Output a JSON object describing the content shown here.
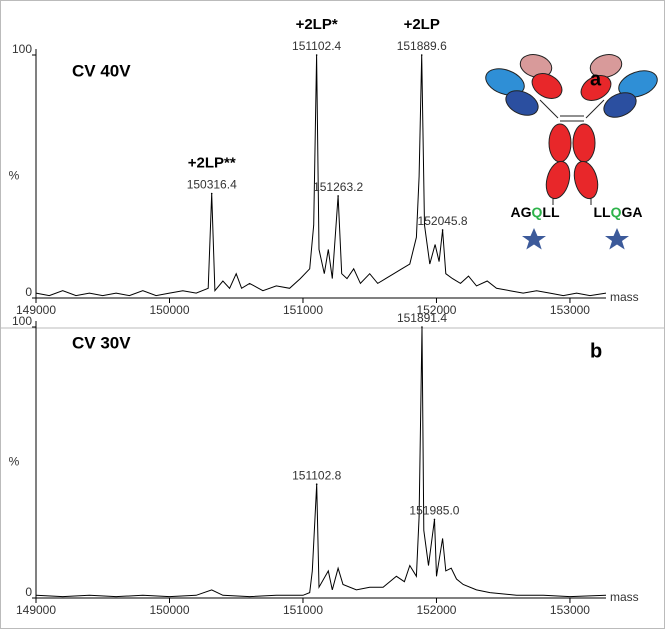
{
  "charts": [
    {
      "type": "spectrum",
      "panel_label": "a",
      "condition": "CV 40V",
      "x_label": "mass",
      "y_label": "%",
      "xlim": [
        149000,
        153270
      ],
      "ylim": [
        0,
        100
      ],
      "xticks": [
        149000,
        150000,
        151000,
        152000,
        153000
      ],
      "yticks": [
        0,
        100
      ],
      "color": "#000000",
      "x": [
        149000,
        149100,
        149200,
        149300,
        149400,
        149500,
        149600,
        149700,
        149800,
        149900,
        150000,
        150100,
        150200,
        150290,
        150316.4,
        150340,
        150400,
        150450,
        150500,
        150540,
        150600,
        150700,
        150800,
        150900,
        150980,
        151050,
        151080,
        151102.4,
        151120,
        151160,
        151190,
        151220,
        151263.2,
        151290,
        151330,
        151380,
        151430,
        151500,
        151560,
        151620,
        151680,
        151740,
        151800,
        151850,
        151870,
        151889.6,
        151910,
        151950,
        151990,
        152020,
        152045.8,
        152070,
        152120,
        152180,
        152240,
        152300,
        152380,
        152450,
        152550,
        152650,
        152750,
        152850,
        152950,
        153050,
        153150,
        153270
      ],
      "values": [
        2,
        1,
        3,
        1,
        2,
        1,
        2,
        1,
        3,
        1,
        2,
        3,
        2,
        4,
        43,
        3,
        7,
        4,
        10,
        4,
        6,
        3,
        5,
        4,
        8,
        12,
        30,
        100,
        20,
        10,
        20,
        8,
        42,
        10,
        8,
        12,
        6,
        10,
        6,
        8,
        10,
        12,
        14,
        25,
        50,
        100,
        30,
        14,
        22,
        15,
        28,
        10,
        8,
        6,
        9,
        5,
        7,
        4,
        3,
        2,
        3,
        2,
        1,
        2,
        1,
        2
      ],
      "peaks": {
        "x": [
          150316.4,
          151102.4,
          151263.2,
          151889.6,
          152045.8
        ],
        "y": [
          43,
          100,
          42,
          100,
          28
        ],
        "labels": [
          "150316.4",
          "151102.4",
          "151263.2",
          "151889.6",
          "152045.8"
        ],
        "names": [
          "+2LP**",
          "+2LP*",
          null,
          "+2LP",
          null
        ]
      },
      "tags": [
        [
          "AG",
          "Q",
          "LL"
        ],
        [
          "LL",
          "Q",
          "GA"
        ]
      ]
    },
    {
      "type": "spectrum",
      "panel_label": "b",
      "condition": "CV 30V",
      "x_label": "mass",
      "y_label": "%",
      "xlim": [
        149000,
        153270
      ],
      "ylim": [
        0,
        100
      ],
      "xticks": [
        149000,
        150000,
        151000,
        152000,
        153000
      ],
      "yticks": [
        0,
        100
      ],
      "color": "#000000",
      "x": [
        149000,
        149200,
        149400,
        149600,
        149800,
        150000,
        150200,
        150316,
        150400,
        150600,
        150800,
        151000,
        151050,
        151070,
        151102.8,
        151120,
        151190,
        151220,
        151263,
        151300,
        151400,
        151500,
        151600,
        151700,
        151760,
        151800,
        151850,
        151870,
        151891.4,
        151905,
        151940,
        151985,
        152000,
        152046,
        152070,
        152110,
        152150,
        152200,
        152300,
        152400,
        152600,
        152800,
        153000,
        153270
      ],
      "values": [
        1,
        0.5,
        1,
        0.5,
        1,
        0.5,
        1,
        3,
        1,
        0.5,
        1,
        1,
        2,
        10,
        42,
        4,
        10,
        3,
        11,
        5,
        3,
        4,
        4,
        8,
        6,
        12,
        8,
        30,
        100,
        25,
        12,
        29,
        8,
        22,
        10,
        11,
        7,
        5,
        3,
        2,
        1,
        1,
        0.5,
        1
      ],
      "peaks": {
        "x": [
          151102.8,
          151891.4,
          151985
        ],
        "y": [
          42,
          100,
          29
        ],
        "labels": [
          "151102.8",
          "151891.4",
          "151985.0"
        ],
        "names": [
          null,
          null,
          null
        ]
      }
    }
  ]
}
